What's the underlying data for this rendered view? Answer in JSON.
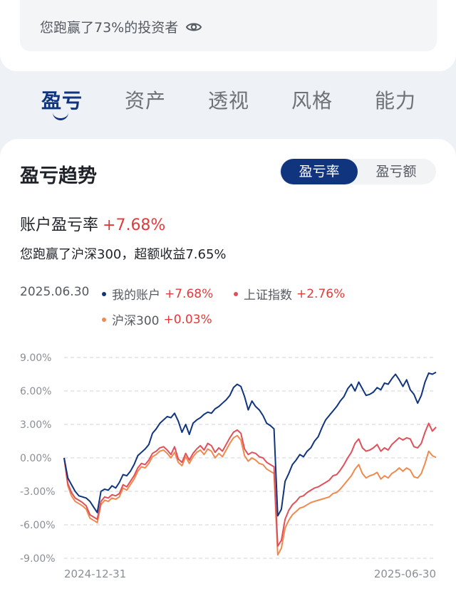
{
  "summary": {
    "rank_text": "您跑赢了73%的投资者"
  },
  "tabs": [
    {
      "label": "盈亏",
      "active": true
    },
    {
      "label": "资产",
      "active": false
    },
    {
      "label": "透视",
      "active": false
    },
    {
      "label": "风格",
      "active": false
    },
    {
      "label": "能力",
      "active": false
    }
  ],
  "section": {
    "title": "盈亏趋势",
    "toggle_on": "盈亏率",
    "toggle_off": "盈亏额",
    "rate_label": "账户盈亏率",
    "rate_value": "+7.68%",
    "beat_text": "您跑赢了沪深300，超额收益7.65%"
  },
  "legend": {
    "date": "2025.06.30",
    "items": [
      {
        "name": "我的账户",
        "value": "+7.68%",
        "color": "#10357e"
      },
      {
        "name": "上证指数",
        "value": "+2.76%",
        "color": "#e0505a"
      },
      {
        "name": "沪深300",
        "value": "+0.03%",
        "color": "#ef8a4f"
      }
    ]
  },
  "chart_data": {
    "type": "line",
    "y_ticks": [
      "9.00%",
      "6.00%",
      "3.00%",
      "0.00%",
      "-3.00%",
      "-6.00%",
      "-9.00%"
    ],
    "ylim": [
      -9,
      9
    ],
    "grid": true,
    "x_start_label": "2024-12-31",
    "x_end_label": "2025-06-30",
    "series": [
      {
        "name": "我的账户",
        "color": "#10357e",
        "values": [
          0,
          -1.8,
          -2.4,
          -3.0,
          -3.4,
          -3.5,
          -3.6,
          -3.9,
          -4.4,
          -4.9,
          -3.0,
          -2.8,
          -2.9,
          -2.5,
          -2.7,
          -2.2,
          -1.5,
          -1.6,
          -1.2,
          -0.6,
          0.2,
          0.5,
          0.8,
          1.2,
          2.2,
          2.6,
          3.1,
          3.4,
          3.7,
          3.6,
          4.0,
          3.3,
          2.3,
          3.0,
          2.1,
          3.1,
          3.4,
          3.6,
          3.9,
          4.1,
          4.0,
          4.4,
          4.6,
          4.9,
          5.2,
          5.6,
          6.3,
          6.6,
          6.4,
          5.5,
          4.3,
          5.1,
          4.6,
          4.3,
          3.8,
          3.1,
          2.9,
          2.6,
          -5.2,
          -4.6,
          -2.1,
          -1.4,
          -0.6,
          -0.2,
          0.3,
          0.1,
          0.6,
          0.9,
          1.5,
          1.9,
          2.7,
          3.4,
          3.8,
          4.2,
          4.6,
          5.1,
          5.5,
          6.2,
          6.6,
          6.0,
          6.8,
          6.2,
          5.6,
          5.7,
          5.9,
          6.3,
          6.1,
          6.7,
          6.6,
          7.1,
          7.5,
          7.0,
          6.4,
          7.0,
          6.1,
          5.7,
          4.9,
          5.6,
          6.8,
          7.6,
          7.5,
          7.68
        ]
      },
      {
        "name": "上证指数",
        "color": "#e0505a",
        "values": [
          0,
          -2.3,
          -3.1,
          -3.6,
          -3.8,
          -4.0,
          -4.3,
          -5.1,
          -5.3,
          -5.5,
          -3.9,
          -3.5,
          -3.6,
          -3.3,
          -3.4,
          -3.2,
          -2.4,
          -2.6,
          -2.1,
          -1.6,
          -0.9,
          -0.5,
          -0.6,
          -0.2,
          0.4,
          0.6,
          0.9,
          1.0,
          0.7,
          0.3,
          1.0,
          -0.1,
          -0.4,
          0.4,
          -0.2,
          0.4,
          0.8,
          1.1,
          0.7,
          1.3,
          1.1,
          0.5,
          0.9,
          0.6,
          1.2,
          1.8,
          2.3,
          2.5,
          2.2,
          0.8,
          0.3,
          0.5,
          0.4,
          0.1,
          0.0,
          -0.4,
          -0.6,
          -0.8,
          -7.9,
          -7.4,
          -5.5,
          -4.7,
          -4.2,
          -3.9,
          -3.5,
          -3.4,
          -3.1,
          -2.9,
          -2.7,
          -2.6,
          -2.4,
          -2.2,
          -2.0,
          -1.6,
          -1.5,
          -1.1,
          -0.6,
          0.0,
          0.5,
          1.3,
          1.7,
          0.9,
          0.6,
          0.7,
          0.9,
          1.2,
          0.6,
          0.9,
          0.7,
          1.2,
          1.5,
          1.8,
          1.6,
          1.8,
          1.7,
          1.0,
          0.9,
          1.3,
          2.3,
          3.1,
          2.4,
          2.76
        ]
      },
      {
        "name": "沪深300",
        "color": "#ef8a4f",
        "values": [
          0,
          -2.5,
          -3.4,
          -3.9,
          -4.1,
          -4.3,
          -4.6,
          -5.4,
          -5.6,
          -5.8,
          -4.2,
          -3.8,
          -3.9,
          -3.6,
          -3.7,
          -3.5,
          -2.7,
          -2.9,
          -2.4,
          -1.9,
          -1.2,
          -0.8,
          -0.9,
          -0.5,
          0.1,
          0.3,
          0.6,
          0.7,
          0.4,
          0.0,
          0.5,
          -0.4,
          -0.7,
          0.1,
          -0.5,
          0.1,
          0.5,
          0.7,
          0.3,
          0.8,
          0.6,
          0.0,
          0.4,
          0.1,
          0.7,
          1.3,
          1.8,
          2.0,
          1.6,
          0.2,
          -0.3,
          0.0,
          -0.2,
          -0.5,
          -0.6,
          -1.0,
          -1.2,
          -1.4,
          -8.7,
          -8.1,
          -6.3,
          -5.6,
          -5.1,
          -4.8,
          -4.5,
          -4.4,
          -4.2,
          -4.0,
          -3.9,
          -3.8,
          -3.7,
          -3.6,
          -3.5,
          -3.2,
          -3.1,
          -2.8,
          -2.4,
          -2.0,
          -1.6,
          -1.0,
          -0.6,
          -1.4,
          -1.8,
          -1.6,
          -1.5,
          -1.3,
          -1.9,
          -1.6,
          -1.8,
          -1.4,
          -1.2,
          -0.9,
          -1.2,
          -0.9,
          -1.1,
          -1.7,
          -1.8,
          -1.4,
          -0.5,
          0.6,
          0.2,
          0.03
        ]
      }
    ]
  }
}
